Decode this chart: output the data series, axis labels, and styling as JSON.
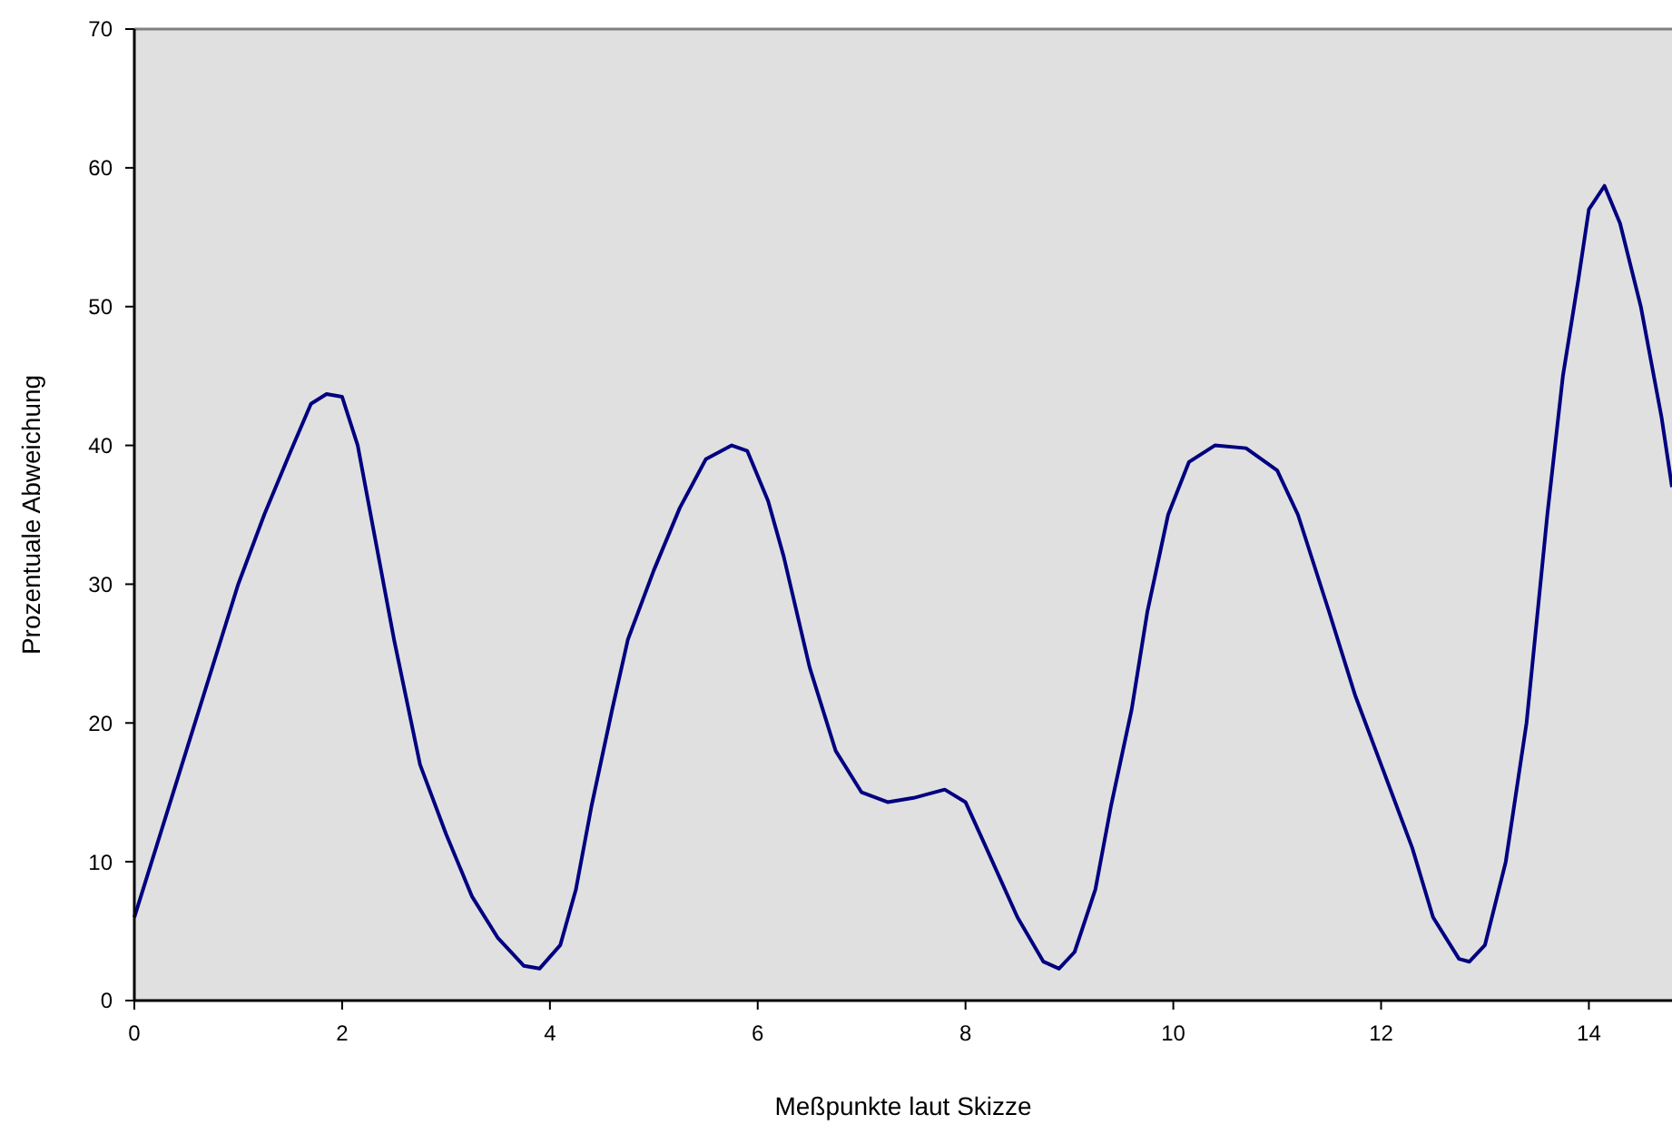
{
  "chart_data": {
    "type": "line",
    "xlabel": "Meßpunkte laut Skizze",
    "ylabel": "Prozentuale Abweichung",
    "xlim": [
      0,
      14.8
    ],
    "xticks": [
      0,
      2,
      4,
      6,
      8,
      10,
      12,
      14
    ],
    "ylim": [
      0,
      70
    ],
    "yticks": [
      0,
      10,
      20,
      30,
      40,
      50,
      60,
      70
    ],
    "grid": false,
    "marker": "none",
    "line_style": "solid",
    "series": [
      {
        "color": "#000080",
        "x": [
          0,
          0.25,
          0.5,
          0.75,
          1,
          1.25,
          1.5,
          1.7,
          1.85,
          2,
          2.15,
          2.3,
          2.5,
          2.75,
          3,
          3.25,
          3.5,
          3.75,
          3.9,
          4.1,
          4.25,
          4.4,
          4.6,
          4.75,
          5,
          5.25,
          5.5,
          5.75,
          5.9,
          6.1,
          6.25,
          6.5,
          6.75,
          7,
          7.25,
          7.5,
          7.8,
          8,
          8.2,
          8.5,
          8.75,
          8.9,
          9.05,
          9.25,
          9.4,
          9.6,
          9.75,
          9.95,
          10.15,
          10.4,
          10.7,
          11,
          11.2,
          11.5,
          11.75,
          12,
          12.3,
          12.5,
          12.75,
          12.85,
          13,
          13.2,
          13.4,
          13.6,
          13.75,
          13.9,
          14,
          14.15,
          14.3,
          14.5,
          14.7,
          14.8
        ],
        "values": [
          6,
          12,
          18,
          24,
          30,
          35,
          39.5,
          43,
          43.7,
          43.5,
          40,
          34,
          26,
          17,
          12,
          7.5,
          4.5,
          2.5,
          2.3,
          4,
          8,
          14,
          21,
          26,
          31,
          35.5,
          39,
          40,
          39.6,
          36,
          32,
          24,
          18,
          15,
          14.3,
          14.6,
          15.2,
          14.3,
          11,
          6,
          2.8,
          2.3,
          3.5,
          8,
          14,
          21,
          28,
          35,
          38.8,
          40,
          39.8,
          38.2,
          35,
          28,
          22,
          17,
          11,
          6,
          3,
          2.8,
          4,
          10,
          20,
          35,
          45,
          52,
          57,
          58.7,
          56,
          50,
          42,
          37
        ]
      }
    ]
  }
}
